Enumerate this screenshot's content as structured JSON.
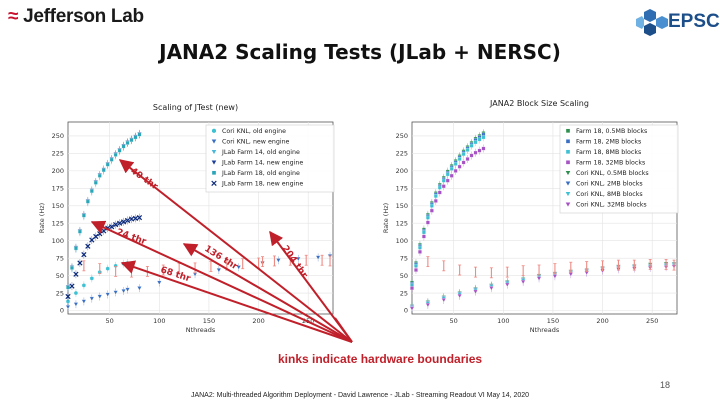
{
  "header": {
    "logo_left": "Jefferson Lab",
    "logo_right": "EPSCI",
    "title": "JANA2 Scaling Tests (JLab + NERSC)"
  },
  "annotation": {
    "kinks": "kinks indicate hardware boundaries",
    "thread_labels": [
      "40 thr",
      "24 thr",
      "68 thr",
      "136 thr",
      "204 thr"
    ]
  },
  "footer": {
    "page_number": "18",
    "text": "JANA2: Multi-threaded Algorithm Deployment - David Lawrence - JLab - Streaming Readout VI May 14, 2020"
  },
  "chart_data": [
    {
      "type": "scatter",
      "title": "Scaling of JTest (new)",
      "xlabel": "Nthreads",
      "ylabel": "Rate (Hz)",
      "xlim": [
        8,
        275
      ],
      "ylim": [
        -5,
        270
      ],
      "xticks": [
        50,
        100,
        150,
        200,
        250
      ],
      "yticks": [
        0,
        25,
        50,
        75,
        100,
        125,
        150,
        175,
        200,
        225,
        250
      ],
      "legend_position": "top-right",
      "grid": true,
      "series": [
        {
          "name": "Cori KNL, old engine",
          "color": "#3ec1d3",
          "marker": "hexagon",
          "x": [
            8,
            16,
            24,
            32,
            40,
            48,
            56,
            64,
            68
          ],
          "y": [
            13,
            25,
            36,
            46,
            55,
            60,
            64,
            67,
            68
          ]
        },
        {
          "name": "Cori KNL, new engine",
          "color": "#3a6fc4",
          "marker": "triangle-down",
          "x": [
            8,
            16,
            24,
            32,
            40,
            48,
            56,
            64,
            68,
            80,
            100,
            136,
            160,
            180,
            204,
            220,
            240,
            260,
            272
          ],
          "y": [
            5,
            9,
            13,
            17,
            20,
            23,
            26,
            28,
            30,
            32,
            40,
            52,
            58,
            62,
            68,
            72,
            74,
            76,
            78
          ]
        },
        {
          "name": "JLab Farm 14, old engine",
          "color": "#4bb8d8",
          "marker": "triangle-down",
          "x": [
            8,
            12,
            16,
            20,
            24,
            28,
            32,
            36,
            40,
            44,
            48,
            52,
            56,
            60,
            64,
            68,
            72,
            76,
            80
          ],
          "y": [
            32,
            60,
            88,
            112,
            135,
            155,
            170,
            182,
            192,
            200,
            208,
            215,
            222,
            228,
            234,
            240,
            244,
            248,
            252
          ]
        },
        {
          "name": "JLab Farm 14, new engine",
          "color": "#1d3f9a",
          "marker": "triangle-down",
          "x": [
            8,
            12,
            16,
            20,
            24,
            28,
            32,
            36,
            40,
            44,
            48,
            52,
            56,
            60,
            64,
            68,
            72,
            76,
            80
          ],
          "y": [
            34,
            62,
            90,
            114,
            137,
            157,
            172,
            184,
            194,
            202,
            210,
            217,
            224,
            230,
            236,
            241,
            245,
            249,
            253
          ]
        },
        {
          "name": "JLab Farm 18, old engine",
          "color": "#2aa6b8",
          "marker": "square",
          "x": [
            8,
            12,
            16,
            20,
            24,
            28,
            32,
            36,
            40,
            44,
            48,
            52,
            56,
            60,
            64,
            68,
            72,
            76,
            80
          ],
          "y": [
            33,
            61,
            89,
            113,
            136,
            156,
            171,
            183,
            193,
            201,
            209,
            216,
            223,
            229,
            235,
            240,
            244,
            248,
            252
          ]
        },
        {
          "name": "JLab Farm 18, new engine",
          "color": "#0c2a7a",
          "marker": "x",
          "x": [
            8,
            12,
            16,
            20,
            24,
            28,
            32,
            36,
            40,
            44,
            48,
            52,
            56,
            60,
            64,
            68,
            72,
            76,
            80
          ],
          "y": [
            20,
            35,
            52,
            68,
            80,
            92,
            101,
            106,
            110,
            114,
            118,
            120,
            123,
            125,
            127,
            129,
            131,
            132,
            133
          ]
        },
        {
          "name": "",
          "color": "#f08a84",
          "marker": "bar",
          "x": [
            24,
            40,
            56,
            72,
            88,
            104,
            120,
            136,
            152,
            168,
            184,
            200,
            204,
            216,
            232,
            248,
            264,
            272
          ],
          "y": [
            64,
            60,
            56,
            55,
            56,
            58,
            60,
            61,
            63,
            65,
            67,
            68,
            70,
            71,
            72,
            72,
            72,
            71
          ]
        }
      ]
    },
    {
      "type": "scatter",
      "title": "JANA2 Block Size Scaling",
      "xlabel": "Nthreads",
      "ylabel": "Rate (Hz)",
      "xlim": [
        8,
        275
      ],
      "ylim": [
        -5,
        270
      ],
      "xticks": [
        50,
        100,
        150,
        200,
        250
      ],
      "yticks": [
        0,
        25,
        50,
        75,
        100,
        125,
        150,
        175,
        200,
        225,
        250
      ],
      "legend_position": "top-right",
      "grid": true,
      "series": [
        {
          "name": "Farm 18, 0.5MB blocks",
          "color": "#2f8f4e",
          "marker": "square",
          "x": [
            8,
            12,
            16,
            20,
            24,
            28,
            32,
            36,
            40,
            44,
            48,
            52,
            56,
            60,
            64,
            68,
            72,
            76,
            80
          ],
          "y": [
            40,
            68,
            94,
            116,
            137,
            154,
            168,
            180,
            190,
            199,
            207,
            214,
            221,
            228,
            234,
            240,
            246,
            250,
            254
          ]
        },
        {
          "name": "Farm 18, 2MB blocks",
          "color": "#3a6fc4",
          "marker": "square",
          "x": [
            8,
            12,
            16,
            20,
            24,
            28,
            32,
            36,
            40,
            44,
            48,
            52,
            56,
            60,
            64,
            68,
            72,
            76,
            80
          ],
          "y": [
            38,
            66,
            92,
            114,
            135,
            152,
            166,
            178,
            188,
            197,
            205,
            212,
            219,
            226,
            232,
            238,
            244,
            248,
            252
          ]
        },
        {
          "name": "Farm 18, 8MB blocks",
          "color": "#3ec1d3",
          "marker": "square",
          "x": [
            8,
            12,
            16,
            20,
            24,
            28,
            32,
            36,
            40,
            44,
            48,
            52,
            56,
            60,
            64,
            68,
            72,
            76,
            80
          ],
          "y": [
            36,
            64,
            90,
            112,
            133,
            150,
            164,
            176,
            186,
            195,
            203,
            210,
            217,
            224,
            230,
            236,
            241,
            245,
            248
          ]
        },
        {
          "name": "Farm 18, 32MB blocks",
          "color": "#a653c4",
          "marker": "square",
          "x": [
            8,
            12,
            16,
            20,
            24,
            28,
            32,
            36,
            40,
            44,
            48,
            52,
            56,
            60,
            64,
            68,
            72,
            76,
            80
          ],
          "y": [
            32,
            58,
            84,
            106,
            126,
            143,
            157,
            169,
            178,
            186,
            193,
            200,
            206,
            212,
            217,
            222,
            226,
            229,
            232
          ]
        },
        {
          "name": "Cori KNL, 0.5MB blocks",
          "color": "#2f8f4e",
          "marker": "triangle-down",
          "x": [
            8,
            24,
            40,
            56,
            72,
            88,
            104,
            120,
            136,
            152,
            168,
            184,
            200,
            216,
            232,
            248,
            264,
            272
          ],
          "y": [
            6,
            12,
            19,
            25,
            31,
            36,
            41,
            45,
            50,
            53,
            56,
            58,
            61,
            63,
            64,
            66,
            67,
            67
          ]
        },
        {
          "name": "Cori KNL, 2MB blocks",
          "color": "#3a6fc4",
          "marker": "triangle-down",
          "x": [
            8,
            24,
            40,
            56,
            72,
            88,
            104,
            120,
            136,
            152,
            168,
            184,
            200,
            216,
            232,
            248,
            264,
            272
          ],
          "y": [
            5,
            11,
            18,
            24,
            30,
            35,
            40,
            44,
            49,
            52,
            55,
            57,
            60,
            62,
            63,
            64,
            65,
            66
          ]
        },
        {
          "name": "Cori KNL, 8MB blocks",
          "color": "#3ec1d3",
          "marker": "triangle-down",
          "x": [
            8,
            24,
            40,
            56,
            72,
            88,
            104,
            120,
            136,
            152,
            168,
            184,
            200,
            216,
            232,
            248,
            264,
            272
          ],
          "y": [
            4,
            10,
            17,
            23,
            29,
            34,
            39,
            43,
            48,
            51,
            54,
            56,
            59,
            61,
            62,
            63,
            64,
            65
          ]
        },
        {
          "name": "Cori KNL, 32MB blocks",
          "color": "#a653c4",
          "marker": "triangle-down",
          "x": [
            8,
            24,
            40,
            56,
            72,
            88,
            104,
            120,
            136,
            152,
            168,
            184,
            200,
            216,
            232,
            248,
            264,
            272
          ],
          "y": [
            3,
            8,
            15,
            21,
            27,
            32,
            37,
            41,
            46,
            49,
            52,
            54,
            57,
            59,
            60,
            61,
            62,
            63
          ]
        },
        {
          "name": "",
          "color": "#f08a84",
          "marker": "bar",
          "x": [
            24,
            40,
            56,
            72,
            88,
            104,
            120,
            136,
            152,
            168,
            184,
            200,
            216,
            232,
            248,
            264,
            272
          ],
          "y": [
            70,
            64,
            58,
            55,
            54,
            55,
            57,
            58,
            60,
            62,
            63,
            64,
            65,
            65,
            66,
            66,
            65
          ]
        }
      ]
    }
  ]
}
